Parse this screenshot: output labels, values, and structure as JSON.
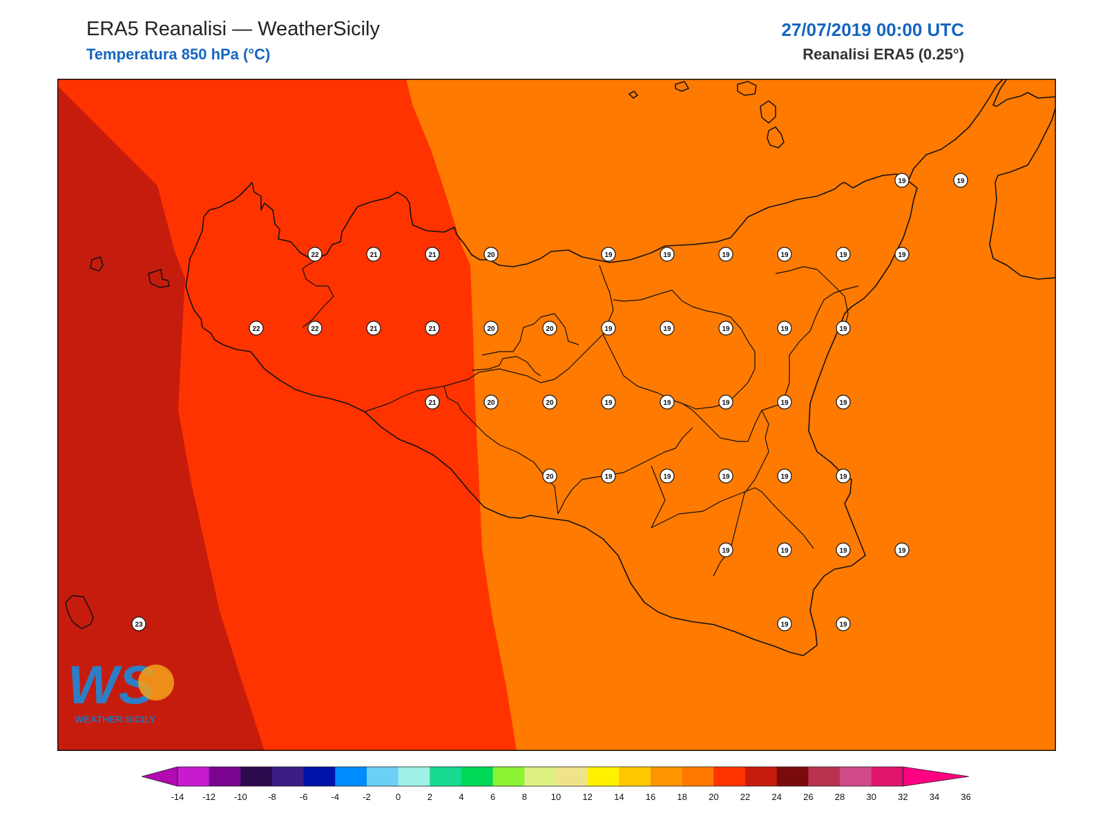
{
  "header": {
    "title": "ERA5 Reanalisi — WeatherSicily",
    "subtitle": "Temperatura 850 hPa (°C)",
    "datetime": "27/07/2019 00:00 UTC",
    "source": "Reanalisi ERA5 (0.25°)"
  },
  "logo": {
    "letters": "WS",
    "text": "WEATHER SICILY"
  },
  "colors": {
    "zone_24": "#c61c0e",
    "zone_22": "#ff3300",
    "zone_20": "#ff7a00",
    "coast": "#111111",
    "marker_fill": "#ffffff"
  },
  "colorbar": {
    "ticks": [
      "-14",
      "-12",
      "-10",
      "-8",
      "-6",
      "-4",
      "-2",
      "0",
      "2",
      "4",
      "6",
      "8",
      "10",
      "12",
      "14",
      "16",
      "18",
      "20",
      "22",
      "24",
      "26",
      "28",
      "30",
      "32",
      "34",
      "36"
    ],
    "colors": [
      "#b10ab1",
      "#c71bd0",
      "#7a0490",
      "#2e0a4e",
      "#3a1d86",
      "#0013a8",
      "#008cff",
      "#6ccff6",
      "#9ff0e6",
      "#17d98f",
      "#00d957",
      "#8ef234",
      "#dcef81",
      "#efe38a",
      "#fff200",
      "#ffc800",
      "#ff9500",
      "#ff7a00",
      "#ff3300",
      "#c61c0e",
      "#7a0b0b",
      "#b83250",
      "#cf4a86",
      "#e0146c",
      "#ff0080"
    ]
  },
  "labels": [
    {
      "lat": 38.0,
      "lon": 12.75,
      "t": "22"
    },
    {
      "lat": 38.0,
      "lon": 13.0,
      "t": "21"
    },
    {
      "lat": 38.0,
      "lon": 13.25,
      "t": "21"
    },
    {
      "lat": 38.0,
      "lon": 13.5,
      "t": "20"
    },
    {
      "lat": 38.0,
      "lon": 14.0,
      "t": "19"
    },
    {
      "lat": 38.0,
      "lon": 14.25,
      "t": "19"
    },
    {
      "lat": 38.0,
      "lon": 14.5,
      "t": "19"
    },
    {
      "lat": 38.0,
      "lon": 14.75,
      "t": "19"
    },
    {
      "lat": 38.0,
      "lon": 15.0,
      "t": "19"
    },
    {
      "lat": 38.0,
      "lon": 15.25,
      "t": "19"
    },
    {
      "lat": 38.25,
      "lon": 15.25,
      "t": "19"
    },
    {
      "lat": 38.25,
      "lon": 15.5,
      "t": "19"
    },
    {
      "lat": 37.75,
      "lon": 12.5,
      "t": "22"
    },
    {
      "lat": 37.75,
      "lon": 12.75,
      "t": "22"
    },
    {
      "lat": 37.75,
      "lon": 13.0,
      "t": "21"
    },
    {
      "lat": 37.75,
      "lon": 13.25,
      "t": "21"
    },
    {
      "lat": 37.75,
      "lon": 13.5,
      "t": "20"
    },
    {
      "lat": 37.75,
      "lon": 13.75,
      "t": "20"
    },
    {
      "lat": 37.75,
      "lon": 14.0,
      "t": "19"
    },
    {
      "lat": 37.75,
      "lon": 14.25,
      "t": "19"
    },
    {
      "lat": 37.75,
      "lon": 14.5,
      "t": "19"
    },
    {
      "lat": 37.75,
      "lon": 14.75,
      "t": "19"
    },
    {
      "lat": 37.75,
      "lon": 15.0,
      "t": "19"
    },
    {
      "lat": 37.5,
      "lon": 13.25,
      "t": "21"
    },
    {
      "lat": 37.5,
      "lon": 13.5,
      "t": "20"
    },
    {
      "lat": 37.5,
      "lon": 13.75,
      "t": "20"
    },
    {
      "lat": 37.5,
      "lon": 14.0,
      "t": "19"
    },
    {
      "lat": 37.5,
      "lon": 14.25,
      "t": "19"
    },
    {
      "lat": 37.5,
      "lon": 14.5,
      "t": "19"
    },
    {
      "lat": 37.5,
      "lon": 14.75,
      "t": "19"
    },
    {
      "lat": 37.5,
      "lon": 15.0,
      "t": "19"
    },
    {
      "lat": 37.25,
      "lon": 13.75,
      "t": "20"
    },
    {
      "lat": 37.25,
      "lon": 14.0,
      "t": "19"
    },
    {
      "lat": 37.25,
      "lon": 14.25,
      "t": "19"
    },
    {
      "lat": 37.25,
      "lon": 14.5,
      "t": "19"
    },
    {
      "lat": 37.25,
      "lon": 14.75,
      "t": "19"
    },
    {
      "lat": 37.25,
      "lon": 15.0,
      "t": "19"
    },
    {
      "lat": 37.0,
      "lon": 14.5,
      "t": "19"
    },
    {
      "lat": 37.0,
      "lon": 14.75,
      "t": "19"
    },
    {
      "lat": 37.0,
      "lon": 15.0,
      "t": "19"
    },
    {
      "lat": 37.0,
      "lon": 15.25,
      "t": "19"
    },
    {
      "lat": 36.75,
      "lon": 14.75,
      "t": "19"
    },
    {
      "lat": 36.75,
      "lon": 15.0,
      "t": "19"
    },
    {
      "lat": 36.75,
      "lon": 12.0,
      "t": "23"
    }
  ]
}
